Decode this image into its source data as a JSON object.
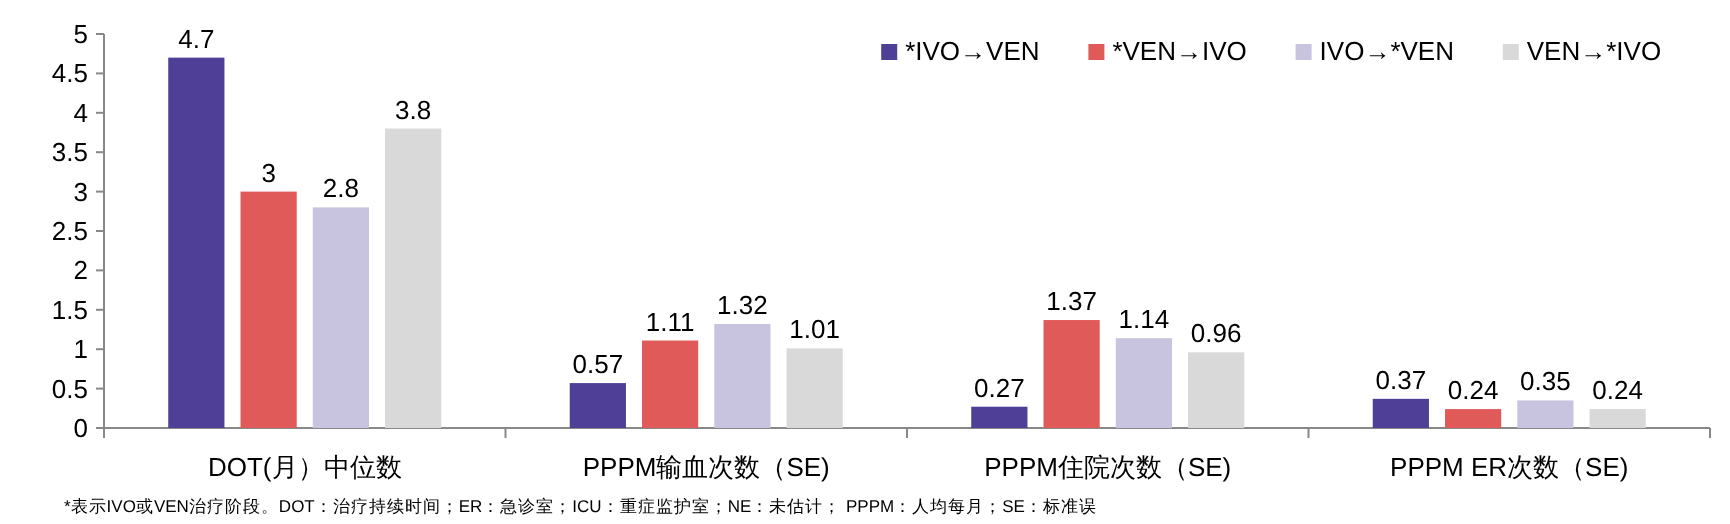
{
  "chart_data": {
    "type": "bar",
    "categories": [
      "DOT(月）中位数",
      "PPPM输血次数（SE)",
      "PPPM住院次数（SE)",
      "PPPM ER次数（SE)"
    ],
    "series": [
      {
        "name": "*IVO→VEN",
        "color": "#4f3f96",
        "values": [
          4.7,
          0.57,
          0.27,
          0.37
        ]
      },
      {
        "name": "*VEN→IVO",
        "color": "#e05a5a",
        "values": [
          3,
          1.11,
          1.37,
          0.24
        ]
      },
      {
        "name": "IVO→*VEN",
        "color": "#c8c3de",
        "values": [
          2.8,
          1.32,
          1.14,
          0.35
        ]
      },
      {
        "name": "VEN→*IVO",
        "color": "#d9d9d9",
        "values": [
          3.8,
          1.01,
          0.96,
          0.24
        ]
      }
    ],
    "ylim": [
      0,
      5
    ],
    "yticks": [
      0,
      0.5,
      1,
      1.5,
      2,
      2.5,
      3,
      3.5,
      4,
      4.5,
      5
    ],
    "data_labels": true,
    "legend": "top right",
    "annotations": [
      "*表示IVO或VEN治疗阶段。DOT：治疗持续时间；ER：急诊室；ICU：重症监护室；NE：未估计；  PPPM：人均每月；SE：标准误"
    ]
  }
}
